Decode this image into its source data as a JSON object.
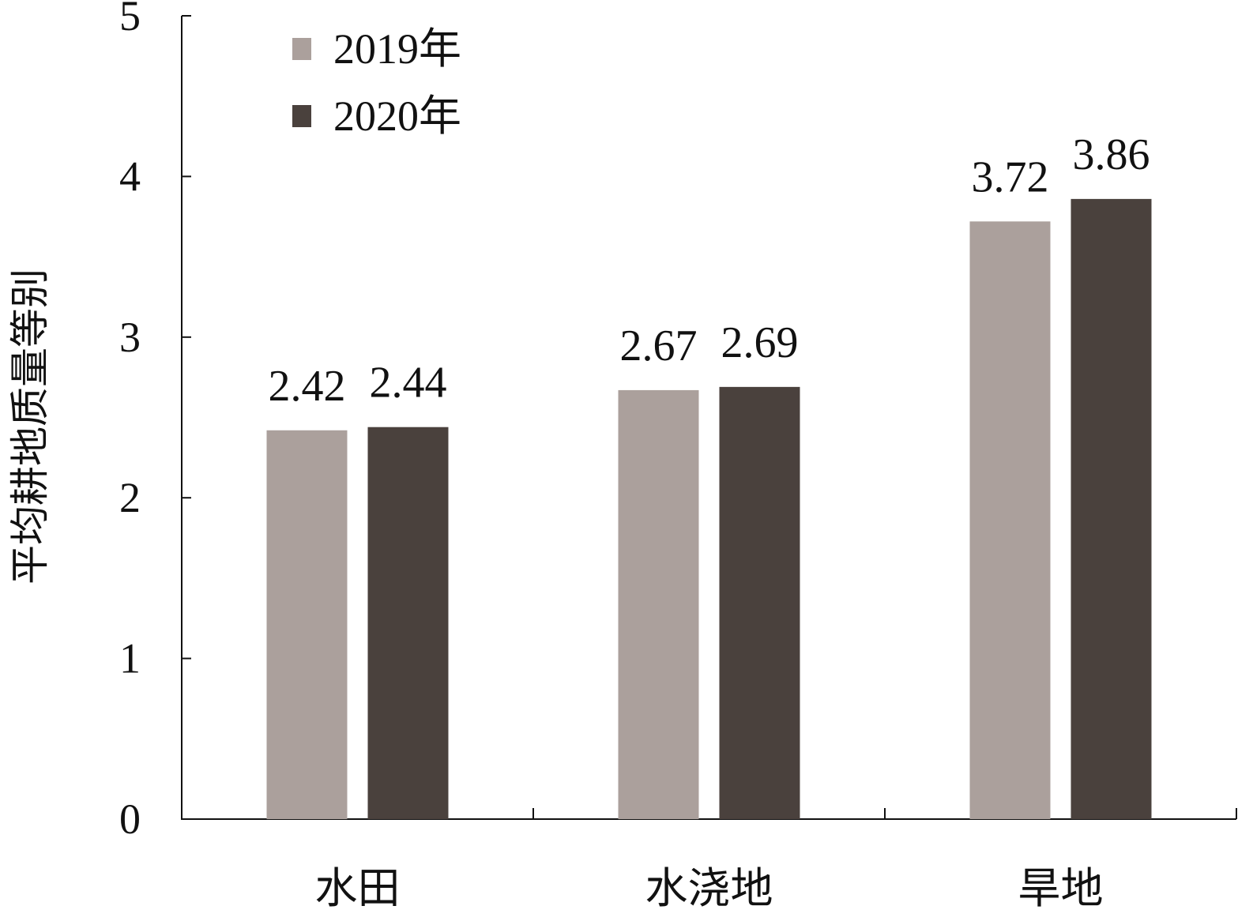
{
  "chart_data": {
    "type": "bar",
    "categories": [
      "水田",
      "水浇地",
      "旱地"
    ],
    "series": [
      {
        "name": "2019年",
        "values": [
          2.42,
          2.67,
          3.72
        ],
        "color": "#aba09c"
      },
      {
        "name": "2020年",
        "values": [
          2.44,
          2.69,
          3.86
        ],
        "color": "#4a413d"
      }
    ],
    "data_labels": [
      [
        "2.42",
        "2.67",
        "3.72"
      ],
      [
        "2.44",
        "2.69",
        "3.86"
      ]
    ],
    "title": "",
    "xlabel": "",
    "ylabel": "平均耕地质量等别",
    "ylim": [
      0,
      5
    ],
    "yticks": [
      0,
      1,
      2,
      3,
      4,
      5
    ],
    "ytick_labels": [
      "0",
      "1",
      "2",
      "3",
      "4",
      "5"
    ],
    "grid": false,
    "legend_position": "top-left"
  }
}
